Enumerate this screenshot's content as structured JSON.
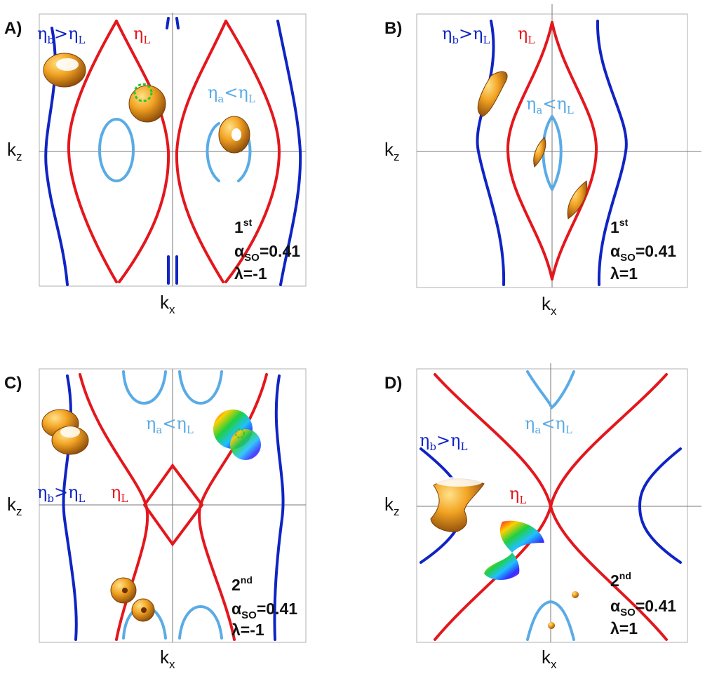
{
  "panels": {
    "A": {
      "label": "A)",
      "eta_b": {
        "main": "η",
        "sub": "b",
        "rel": ">η",
        "sub2": "L"
      },
      "eta_L": {
        "main": "η",
        "sub": "L"
      },
      "eta_a": {
        "main": "η",
        "sub": "a",
        "rel": "<η",
        "sub2": "L"
      },
      "order": "1",
      "order_sup": "st",
      "alpha": "α",
      "alpha_sub": "SO",
      "alpha_val": "=0.41",
      "lambda": "λ=-1"
    },
    "B": {
      "label": "B)",
      "eta_b": {
        "main": "η",
        "sub": "b",
        "rel": ">η",
        "sub2": "L"
      },
      "eta_L": {
        "main": "η",
        "sub": "L"
      },
      "eta_a": {
        "main": "η",
        "sub": "a",
        "rel": "<η",
        "sub2": "L"
      },
      "order": "1",
      "order_sup": "st",
      "alpha": "α",
      "alpha_sub": "SO",
      "alpha_val": "=0.41",
      "lambda": "λ=1"
    },
    "C": {
      "label": "C)",
      "eta_b": {
        "main": "η",
        "sub": "b",
        "rel": ">η",
        "sub2": "L"
      },
      "eta_L": {
        "main": "η",
        "sub": "L"
      },
      "eta_a": {
        "main": "η",
        "sub": "a",
        "rel": "<η",
        "sub2": "L"
      },
      "order": "2",
      "order_sup": "nd",
      "alpha": "α",
      "alpha_sub": "SO",
      "alpha_val": "=0.41",
      "lambda": "λ=-1"
    },
    "D": {
      "label": "D)",
      "eta_b": {
        "main": "η",
        "sub": "b",
        "rel": ">η",
        "sub2": "L"
      },
      "eta_L": {
        "main": "η",
        "sub": "L"
      },
      "eta_a": {
        "main": "η",
        "sub": "a",
        "rel": "<η",
        "sub2": "L"
      },
      "order": "2",
      "order_sup": "nd",
      "alpha": "α",
      "alpha_sub": "SO",
      "alpha_val": "=0.41",
      "lambda": "λ=1"
    }
  },
  "axes": {
    "x_main": "k",
    "x_sub": "x",
    "y_main": "k",
    "y_sub": "z"
  },
  "colors": {
    "eta_L": "#e3171d",
    "eta_b": "#1024c4",
    "eta_a": "#5aabe6",
    "surface": "#f0a020"
  }
}
